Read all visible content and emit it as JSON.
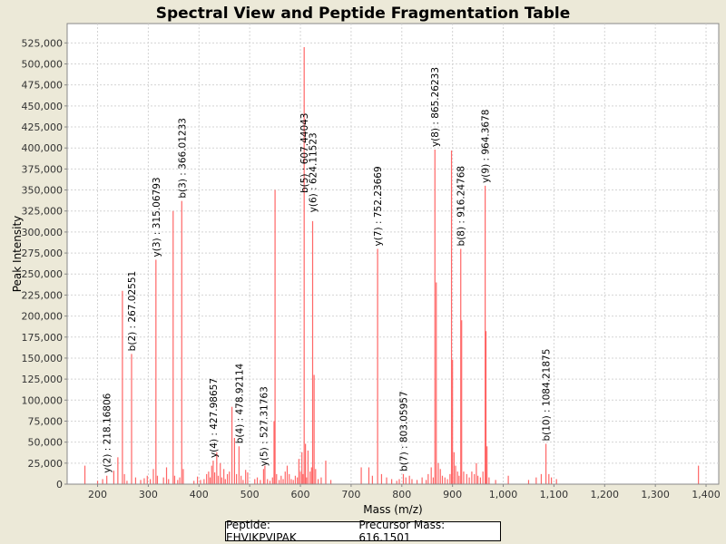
{
  "chart_data": {
    "type": "bar",
    "title": "Spectral View and Peptide Fragmentation Table",
    "xlabel": "Mass (m/z)",
    "ylabel": "Peak Intensity",
    "xlim": [
      140,
      1425
    ],
    "ylim": [
      0,
      548000
    ],
    "xticks": [
      200,
      300,
      400,
      500,
      600,
      700,
      800,
      900,
      1000,
      1100,
      1200,
      1300,
      1400
    ],
    "xtick_labels": [
      "200",
      "300",
      "400",
      "500",
      "600",
      "700",
      "800",
      "900",
      "1,000",
      "1,100",
      "1,200",
      "1,300",
      "1,400"
    ],
    "yticks": [
      0,
      25000,
      50000,
      75000,
      100000,
      125000,
      150000,
      175000,
      200000,
      225000,
      250000,
      275000,
      300000,
      325000,
      350000,
      375000,
      400000,
      425000,
      450000,
      475000,
      500000,
      525000
    ],
    "ytick_labels": [
      "0",
      "25,000",
      "50,000",
      "75,000",
      "100,000",
      "125,000",
      "150,000",
      "175,000",
      "200,000",
      "225,000",
      "250,000",
      "275,000",
      "300,000",
      "325,000",
      "350,000",
      "375,000",
      "400,000",
      "425,000",
      "450,000",
      "475,000",
      "500,000",
      "525,000"
    ],
    "grid": true,
    "peaks": [
      {
        "x": 175,
        "y": 22000
      },
      {
        "x": 200,
        "y": 4000
      },
      {
        "x": 210,
        "y": 6000
      },
      {
        "x": 218.17,
        "y": 10000
      },
      {
        "x": 232,
        "y": 16000
      },
      {
        "x": 240,
        "y": 32000
      },
      {
        "x": 249,
        "y": 230000
      },
      {
        "x": 253,
        "y": 12000
      },
      {
        "x": 258,
        "y": 4000
      },
      {
        "x": 267.03,
        "y": 155000
      },
      {
        "x": 275,
        "y": 8000
      },
      {
        "x": 285,
        "y": 5000
      },
      {
        "x": 292,
        "y": 7000
      },
      {
        "x": 298,
        "y": 10000
      },
      {
        "x": 304,
        "y": 6000
      },
      {
        "x": 310,
        "y": 18000
      },
      {
        "x": 315.07,
        "y": 267000
      },
      {
        "x": 318,
        "y": 10000
      },
      {
        "x": 330,
        "y": 8000
      },
      {
        "x": 336,
        "y": 20000
      },
      {
        "x": 340,
        "y": 6000
      },
      {
        "x": 349,
        "y": 325000
      },
      {
        "x": 352,
        "y": 10000
      },
      {
        "x": 358,
        "y": 5000
      },
      {
        "x": 362,
        "y": 8000
      },
      {
        "x": 366.01,
        "y": 337000
      },
      {
        "x": 369,
        "y": 18000
      },
      {
        "x": 390,
        "y": 4000
      },
      {
        "x": 397,
        "y": 9000
      },
      {
        "x": 403,
        "y": 5000
      },
      {
        "x": 410,
        "y": 6000
      },
      {
        "x": 415,
        "y": 12000
      },
      {
        "x": 419,
        "y": 15000
      },
      {
        "x": 422,
        "y": 8000
      },
      {
        "x": 425,
        "y": 22000
      },
      {
        "x": 427.99,
        "y": 28000
      },
      {
        "x": 431,
        "y": 14000
      },
      {
        "x": 435,
        "y": 38000
      },
      {
        "x": 438,
        "y": 10000
      },
      {
        "x": 442,
        "y": 25000
      },
      {
        "x": 445,
        "y": 8000
      },
      {
        "x": 449,
        "y": 18000
      },
      {
        "x": 452,
        "y": 6000
      },
      {
        "x": 456,
        "y": 12000
      },
      {
        "x": 460,
        "y": 15000
      },
      {
        "x": 465,
        "y": 92000
      },
      {
        "x": 470,
        "y": 55000
      },
      {
        "x": 474,
        "y": 12000
      },
      {
        "x": 478.92,
        "y": 45000
      },
      {
        "x": 483,
        "y": 10000
      },
      {
        "x": 487,
        "y": 5000
      },
      {
        "x": 492,
        "y": 17000
      },
      {
        "x": 496,
        "y": 14000
      },
      {
        "x": 510,
        "y": 6000
      },
      {
        "x": 515,
        "y": 8000
      },
      {
        "x": 521,
        "y": 5000
      },
      {
        "x": 527.32,
        "y": 18000
      },
      {
        "x": 530,
        "y": 22000
      },
      {
        "x": 535,
        "y": 6000
      },
      {
        "x": 540,
        "y": 4000
      },
      {
        "x": 545,
        "y": 8000
      },
      {
        "x": 548,
        "y": 75000
      },
      {
        "x": 550,
        "y": 350000
      },
      {
        "x": 553,
        "y": 12000
      },
      {
        "x": 558,
        "y": 5000
      },
      {
        "x": 562,
        "y": 10000
      },
      {
        "x": 566,
        "y": 6000
      },
      {
        "x": 570,
        "y": 15000
      },
      {
        "x": 574,
        "y": 22000
      },
      {
        "x": 578,
        "y": 12000
      },
      {
        "x": 582,
        "y": 6000
      },
      {
        "x": 586,
        "y": 5000
      },
      {
        "x": 590,
        "y": 10000
      },
      {
        "x": 594,
        "y": 8000
      },
      {
        "x": 597,
        "y": 30000
      },
      {
        "x": 600,
        "y": 15000
      },
      {
        "x": 603,
        "y": 38000
      },
      {
        "x": 605,
        "y": 12000
      },
      {
        "x": 607.44,
        "y": 520000
      },
      {
        "x": 610,
        "y": 48000
      },
      {
        "x": 612,
        "y": 8000
      },
      {
        "x": 615,
        "y": 40000
      },
      {
        "x": 619,
        "y": 15000
      },
      {
        "x": 622,
        "y": 20000
      },
      {
        "x": 624.12,
        "y": 313000
      },
      {
        "x": 627,
        "y": 130000
      },
      {
        "x": 630,
        "y": 18000
      },
      {
        "x": 635,
        "y": 6000
      },
      {
        "x": 641,
        "y": 8000
      },
      {
        "x": 650,
        "y": 28000
      },
      {
        "x": 660,
        "y": 5000
      },
      {
        "x": 720,
        "y": 20000
      },
      {
        "x": 735,
        "y": 20000
      },
      {
        "x": 742,
        "y": 10000
      },
      {
        "x": 752.24,
        "y": 280000
      },
      {
        "x": 760,
        "y": 12000
      },
      {
        "x": 770,
        "y": 8000
      },
      {
        "x": 780,
        "y": 6000
      },
      {
        "x": 790,
        "y": 4000
      },
      {
        "x": 795,
        "y": 6000
      },
      {
        "x": 803.06,
        "y": 12000
      },
      {
        "x": 808,
        "y": 8000
      },
      {
        "x": 815,
        "y": 10000
      },
      {
        "x": 820,
        "y": 6000
      },
      {
        "x": 830,
        "y": 5000
      },
      {
        "x": 840,
        "y": 8000
      },
      {
        "x": 848,
        "y": 5000
      },
      {
        "x": 852,
        "y": 12000
      },
      {
        "x": 858,
        "y": 20000
      },
      {
        "x": 862,
        "y": 8000
      },
      {
        "x": 865.26,
        "y": 398000
      },
      {
        "x": 868,
        "y": 240000
      },
      {
        "x": 872,
        "y": 25000
      },
      {
        "x": 876,
        "y": 18000
      },
      {
        "x": 880,
        "y": 10000
      },
      {
        "x": 885,
        "y": 8000
      },
      {
        "x": 890,
        "y": 6000
      },
      {
        "x": 895,
        "y": 12000
      },
      {
        "x": 898,
        "y": 397000
      },
      {
        "x": 900,
        "y": 148000
      },
      {
        "x": 903,
        "y": 38000
      },
      {
        "x": 906,
        "y": 22000
      },
      {
        "x": 910,
        "y": 15000
      },
      {
        "x": 913,
        "y": 10000
      },
      {
        "x": 916.25,
        "y": 280000
      },
      {
        "x": 918,
        "y": 195000
      },
      {
        "x": 922,
        "y": 15000
      },
      {
        "x": 928,
        "y": 12000
      },
      {
        "x": 933,
        "y": 8000
      },
      {
        "x": 938,
        "y": 15000
      },
      {
        "x": 943,
        "y": 12000
      },
      {
        "x": 947,
        "y": 25000
      },
      {
        "x": 950,
        "y": 10000
      },
      {
        "x": 955,
        "y": 8000
      },
      {
        "x": 960,
        "y": 15000
      },
      {
        "x": 964.37,
        "y": 355000
      },
      {
        "x": 966,
        "y": 182000
      },
      {
        "x": 968,
        "y": 45000
      },
      {
        "x": 972,
        "y": 8000
      },
      {
        "x": 985,
        "y": 5000
      },
      {
        "x": 1010,
        "y": 10000
      },
      {
        "x": 1050,
        "y": 5000
      },
      {
        "x": 1065,
        "y": 8000
      },
      {
        "x": 1075,
        "y": 12000
      },
      {
        "x": 1084.22,
        "y": 48000
      },
      {
        "x": 1090,
        "y": 12000
      },
      {
        "x": 1095,
        "y": 8000
      },
      {
        "x": 1105,
        "y": 6000
      },
      {
        "x": 1385,
        "y": 22000
      }
    ],
    "annotations": [
      {
        "x": 218.16806,
        "y": 10000,
        "text": "y(2) : 218.16806"
      },
      {
        "x": 267.02551,
        "y": 155000,
        "text": "b(2) : 267.02551"
      },
      {
        "x": 315.06793,
        "y": 267000,
        "text": "y(3) : 315.06793"
      },
      {
        "x": 366.01233,
        "y": 337000,
        "text": "b(3) : 366.01233"
      },
      {
        "x": 427.98657,
        "y": 28000,
        "text": "y(4) : 427.98657"
      },
      {
        "x": 478.92114,
        "y": 45000,
        "text": "b(4) : 478.92114"
      },
      {
        "x": 527.31763,
        "y": 18000,
        "text": "y(5) : 527.31763"
      },
      {
        "x": 607.44043,
        "y": 343000,
        "text": "b(5) : 607.44043"
      },
      {
        "x": 624.11523,
        "y": 320000,
        "text": "y(6) : 624.11523"
      },
      {
        "x": 752.23669,
        "y": 280000,
        "text": "y(7) : 752.23669"
      },
      {
        "x": 803.05957,
        "y": 12000,
        "text": "b(7) : 803.05957"
      },
      {
        "x": 865.26233,
        "y": 398000,
        "text": "y(8) : 865.26233"
      },
      {
        "x": 916.24768,
        "y": 280000,
        "text": "b(8) : 916.24768"
      },
      {
        "x": 964.3678,
        "y": 355000,
        "text": "y(9) : 964.3678"
      },
      {
        "x": 1084.21875,
        "y": 48000,
        "text": "b(10) : 1084.21875"
      }
    ],
    "peak_color": "#FF6666",
    "legend": {
      "placement": "bottom-center",
      "peptide_label": "Peptide:",
      "peptide": "EHVIKPVIPAK",
      "precursor_label": "Precursor Mass:",
      "precursor_mass": "616.1501"
    }
  }
}
